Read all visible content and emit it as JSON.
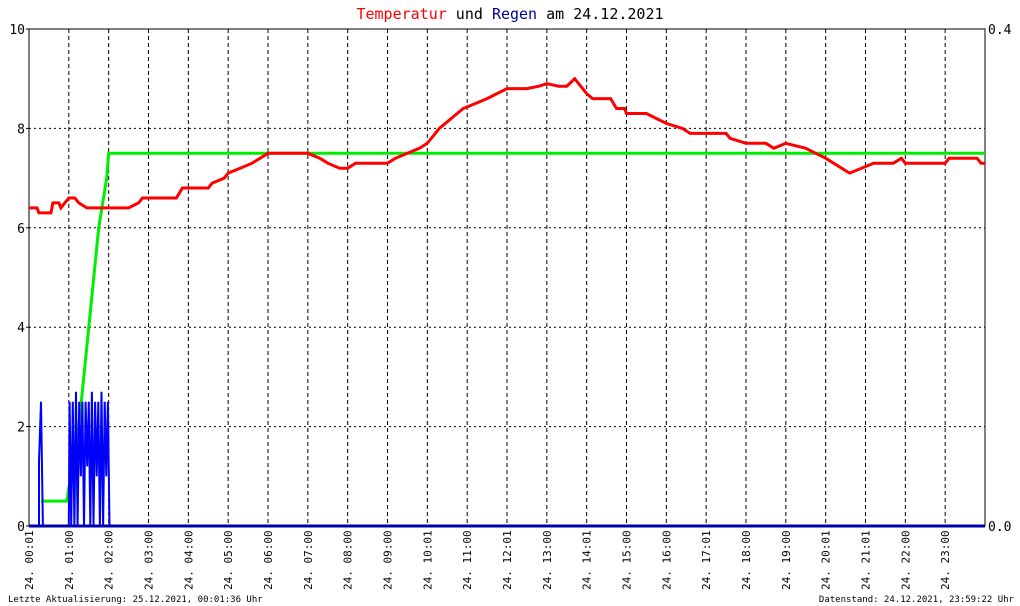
{
  "chart_data": {
    "type": "line",
    "title_parts": [
      {
        "text": "Temperatur",
        "color": "#ff0000"
      },
      {
        "text": " und ",
        "color": "#000000"
      },
      {
        "text": "Regen",
        "color": "#000099"
      },
      {
        "text": " am 24.12.2021",
        "color": "#000000"
      }
    ],
    "x_unit": "hours",
    "xlim": [
      0,
      24
    ],
    "x_tick_labels": [
      "24. 00:01",
      "24. 01:00",
      "24. 02:00",
      "24. 03:00",
      "24. 04:00",
      "24. 05:00",
      "24. 06:00",
      "24. 07:00",
      "24. 08:00",
      "24. 09:00",
      "24. 10:01",
      "24. 11:00",
      "24. 12:01",
      "24. 13:00",
      "24. 14:01",
      "24. 15:00",
      "24. 16:00",
      "24. 17:01",
      "24. 18:00",
      "24. 19:00",
      "24. 20:01",
      "24. 21:01",
      "24. 22:00",
      "24. 23:00"
    ],
    "y_left": {
      "lim": [
        0,
        10
      ],
      "ticks": [
        0,
        2,
        4,
        6,
        8,
        10
      ],
      "tick_labels": [
        "0",
        "2",
        "4",
        "6",
        "8",
        "10"
      ]
    },
    "y_right": {
      "lim": [
        0,
        0.4
      ],
      "ticks": [
        0,
        0.4
      ],
      "tick_labels": [
        "0.0",
        "0.4"
      ]
    },
    "grid": true,
    "series": [
      {
        "key": "temperature",
        "color": "#ff0000",
        "axis": "left",
        "points": [
          [
            0.0,
            6.4
          ],
          [
            0.2,
            6.4
          ],
          [
            0.25,
            6.3
          ],
          [
            0.55,
            6.3
          ],
          [
            0.6,
            6.5
          ],
          [
            0.75,
            6.5
          ],
          [
            0.8,
            6.4
          ],
          [
            0.9,
            6.5
          ],
          [
            1.0,
            6.6
          ],
          [
            1.15,
            6.6
          ],
          [
            1.25,
            6.5
          ],
          [
            1.45,
            6.4
          ],
          [
            2.0,
            6.4
          ],
          [
            2.5,
            6.4
          ],
          [
            2.75,
            6.5
          ],
          [
            2.85,
            6.6
          ],
          [
            3.7,
            6.6
          ],
          [
            3.85,
            6.8
          ],
          [
            4.5,
            6.8
          ],
          [
            4.6,
            6.9
          ],
          [
            4.9,
            7.0
          ],
          [
            5.0,
            7.1
          ],
          [
            5.3,
            7.2
          ],
          [
            5.6,
            7.3
          ],
          [
            6.0,
            7.5
          ],
          [
            7.0,
            7.5
          ],
          [
            7.3,
            7.4
          ],
          [
            7.5,
            7.3
          ],
          [
            7.8,
            7.2
          ],
          [
            8.0,
            7.2
          ],
          [
            8.2,
            7.3
          ],
          [
            9.0,
            7.3
          ],
          [
            9.2,
            7.4
          ],
          [
            9.5,
            7.5
          ],
          [
            9.8,
            7.6
          ],
          [
            10.0,
            7.7
          ],
          [
            10.3,
            8.0
          ],
          [
            10.6,
            8.2
          ],
          [
            10.9,
            8.4
          ],
          [
            11.2,
            8.5
          ],
          [
            11.5,
            8.6
          ],
          [
            11.75,
            8.7
          ],
          [
            12.0,
            8.8
          ],
          [
            12.5,
            8.8
          ],
          [
            12.8,
            8.85
          ],
          [
            13.0,
            8.9
          ],
          [
            13.3,
            8.85
          ],
          [
            13.5,
            8.85
          ],
          [
            13.7,
            9.0
          ],
          [
            13.8,
            8.9
          ],
          [
            14.0,
            8.7
          ],
          [
            14.15,
            8.6
          ],
          [
            14.6,
            8.6
          ],
          [
            14.75,
            8.4
          ],
          [
            14.95,
            8.4
          ],
          [
            15.0,
            8.3
          ],
          [
            15.5,
            8.3
          ],
          [
            15.75,
            8.2
          ],
          [
            16.0,
            8.1
          ],
          [
            16.4,
            8.0
          ],
          [
            16.6,
            7.9
          ],
          [
            17.5,
            7.9
          ],
          [
            17.6,
            7.8
          ],
          [
            18.0,
            7.7
          ],
          [
            18.5,
            7.7
          ],
          [
            18.7,
            7.6
          ],
          [
            19.0,
            7.7
          ],
          [
            19.5,
            7.6
          ],
          [
            19.75,
            7.5
          ],
          [
            20.0,
            7.4
          ],
          [
            20.2,
            7.3
          ],
          [
            20.6,
            7.1
          ],
          [
            20.9,
            7.2
          ],
          [
            21.2,
            7.3
          ],
          [
            21.7,
            7.3
          ],
          [
            21.9,
            7.4
          ],
          [
            22.0,
            7.3
          ],
          [
            22.5,
            7.3
          ],
          [
            23.0,
            7.3
          ],
          [
            23.1,
            7.4
          ],
          [
            23.8,
            7.4
          ],
          [
            23.9,
            7.3
          ],
          [
            24.0,
            7.3
          ]
        ]
      },
      {
        "key": "rain_cumulative",
        "color": "#00ee00",
        "axis": "right",
        "points": [
          [
            0.3,
            0.02
          ],
          [
            0.95,
            0.02
          ],
          [
            1.0,
            0.03
          ],
          [
            1.25,
            0.08
          ],
          [
            1.5,
            0.16
          ],
          [
            1.75,
            0.24
          ],
          [
            1.95,
            0.28
          ],
          [
            2.0,
            0.3
          ],
          [
            24.0,
            0.3
          ]
        ]
      },
      {
        "key": "rain_rate",
        "color": "#0000ff",
        "axis": "left",
        "points": [
          [
            0.0,
            0.0
          ],
          [
            0.25,
            0.0
          ],
          [
            0.25,
            1.3
          ],
          [
            0.3,
            2.5
          ],
          [
            0.35,
            0.0
          ],
          [
            1.0,
            0.0
          ],
          [
            1.02,
            2.5
          ],
          [
            1.06,
            0.0
          ],
          [
            1.1,
            2.5
          ],
          [
            1.14,
            0.0
          ],
          [
            1.18,
            2.7
          ],
          [
            1.22,
            0.0
          ],
          [
            1.26,
            2.5
          ],
          [
            1.3,
            1.0
          ],
          [
            1.34,
            2.5
          ],
          [
            1.38,
            0.0
          ],
          [
            1.42,
            2.5
          ],
          [
            1.46,
            1.2
          ],
          [
            1.5,
            2.5
          ],
          [
            1.54,
            0.0
          ],
          [
            1.58,
            2.7
          ],
          [
            1.62,
            0.0
          ],
          [
            1.66,
            2.5
          ],
          [
            1.7,
            1.0
          ],
          [
            1.74,
            2.5
          ],
          [
            1.78,
            0.0
          ],
          [
            1.82,
            2.7
          ],
          [
            1.86,
            0.0
          ],
          [
            1.9,
            2.5
          ],
          [
            1.94,
            1.0
          ],
          [
            1.98,
            2.5
          ],
          [
            2.02,
            0.0
          ],
          [
            24.0,
            0.0
          ]
        ]
      }
    ],
    "footer_left": "Letzte Aktualisierung: 25.12.2021, 00:01:36 Uhr",
    "footer_right": "Datenstand: 24.12.2021, 23:59:22 Uhr"
  }
}
